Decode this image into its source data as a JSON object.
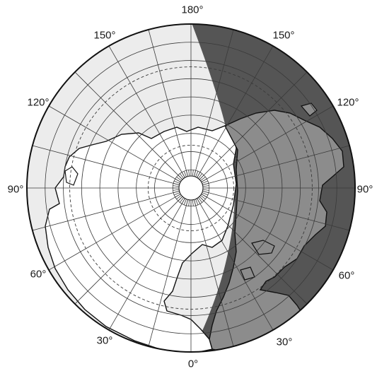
{
  "map": {
    "projection": "polar azimuthal (north pole centered)",
    "labels": {
      "top": "180°",
      "upper_left": "150°",
      "upper_right": "150°",
      "left_upper": "120°",
      "right_upper": "120°",
      "left_mid": "90°",
      "right_mid": "90°",
      "left_lower": "60°",
      "right_lower": "60°",
      "lower_left": "30°",
      "lower_right": "30°",
      "bottom": "0°"
    },
    "colors": {
      "day_side": "#ececec",
      "land_day": "#ffffff",
      "night_side": "#555555",
      "land_night": "#8c8c8c",
      "grid_day": "#3a3a3a",
      "grid_night": "#2e2e2e",
      "outline": "#111111",
      "pole_cap": "#ffffff"
    },
    "parallels_deg": [
      0,
      10,
      20,
      30,
      40,
      50,
      60,
      70,
      80
    ],
    "dashed_parallels_deg": [
      23.5,
      66.5
    ],
    "meridian_step_deg": 15
  }
}
